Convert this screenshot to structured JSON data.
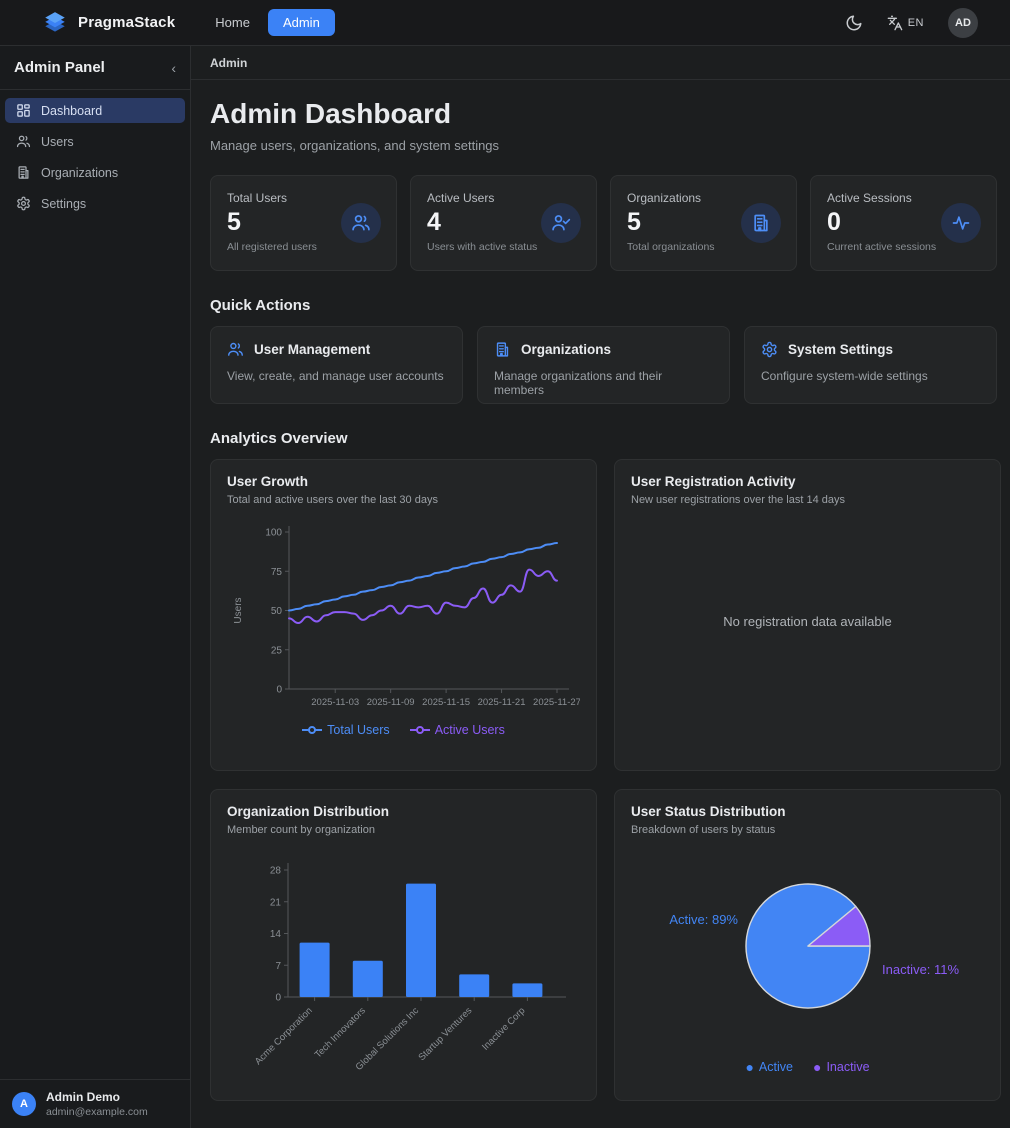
{
  "navbar": {
    "brand": "PragmaStack",
    "links": [
      {
        "label": "Home",
        "active": false
      },
      {
        "label": "Admin",
        "active": true
      }
    ],
    "language": "EN",
    "avatar_initials": "AD"
  },
  "sidebar": {
    "title": "Admin Panel",
    "collapse_icon": "‹",
    "items": [
      {
        "label": "Dashboard",
        "icon": "dashboard-icon",
        "active": true
      },
      {
        "label": "Users",
        "icon": "users-icon",
        "active": false
      },
      {
        "label": "Organizations",
        "icon": "building-icon",
        "active": false
      },
      {
        "label": "Settings",
        "icon": "gear-icon",
        "active": false
      }
    ],
    "user": {
      "name": "Admin Demo",
      "email": "admin@example.com",
      "initial": "A"
    }
  },
  "breadcrumb": "Admin",
  "header": {
    "title": "Admin Dashboard",
    "subtitle": "Manage users, organizations, and system settings"
  },
  "stats": [
    {
      "label": "Total Users",
      "value": "5",
      "description": "All registered users",
      "icon": "users-icon"
    },
    {
      "label": "Active Users",
      "value": "4",
      "description": "Users with active status",
      "icon": "user-check-icon"
    },
    {
      "label": "Organizations",
      "value": "5",
      "description": "Total organizations",
      "icon": "building-icon"
    },
    {
      "label": "Active Sessions",
      "value": "0",
      "description": "Current active sessions",
      "icon": "activity-icon"
    }
  ],
  "quick_actions": {
    "heading": "Quick Actions",
    "items": [
      {
        "title": "User Management",
        "description": "View, create, and manage user accounts",
        "icon": "users-icon"
      },
      {
        "title": "Organizations",
        "description": "Manage organizations and their members",
        "icon": "building-icon"
      },
      {
        "title": "System Settings",
        "description": "Configure system-wide settings",
        "icon": "gear-icon"
      }
    ]
  },
  "analytics_heading": "Analytics Overview",
  "colors": {
    "accent_blue": "#3b82f6",
    "line_blue": "#4d8df6",
    "purple": "#8b5cf6",
    "axis": "#54575a",
    "tick_text": "#8b9095",
    "card_bg": "#232526"
  },
  "chart_data": [
    {
      "type": "line",
      "title": "User Growth",
      "subtitle": "Total and active users over the last 30 days",
      "ylabel": "Users",
      "ylim": [
        0,
        100
      ],
      "yticks": [
        0,
        25,
        50,
        75,
        100
      ],
      "x_tick_indices": [
        5,
        11,
        17,
        23,
        29
      ],
      "x_tick_labels": [
        "2025-11-03",
        "2025-11-09",
        "2025-11-15",
        "2025-11-21",
        "2025-11-27"
      ],
      "legend_position": "bottom",
      "grid": false,
      "series": [
        {
          "name": "Total Users",
          "color": "#4d8df6",
          "values": [
            50,
            51,
            53,
            54,
            56,
            57,
            59,
            60,
            62,
            63,
            65,
            66,
            68,
            69,
            71,
            72,
            74,
            75,
            77,
            78,
            80,
            81,
            83,
            84,
            86,
            87,
            89,
            90,
            92,
            93
          ]
        },
        {
          "name": "Active Users",
          "color": "#8b5cf6",
          "values": [
            45,
            42,
            46,
            43,
            47,
            49,
            49,
            48,
            44,
            47,
            50,
            53,
            48,
            53,
            52,
            53,
            48,
            55,
            53,
            52,
            58,
            64,
            55,
            60,
            66,
            62,
            76,
            72,
            75,
            69
          ]
        }
      ]
    },
    {
      "type": "empty",
      "title": "User Registration Activity",
      "subtitle": "New user registrations over the last 14 days",
      "message": "No registration data available"
    },
    {
      "type": "bar",
      "title": "Organization Distribution",
      "subtitle": "Member count by organization",
      "categories": [
        "Acme Corporation",
        "Tech Innovators",
        "Global Solutions Inc",
        "Startup Ventures",
        "Inactive Corp"
      ],
      "values": [
        12,
        8,
        25,
        5,
        3
      ],
      "ylim": [
        0,
        28
      ],
      "yticks": [
        0,
        7,
        14,
        21,
        28
      ],
      "color": "#3b82f6",
      "grid": false
    },
    {
      "type": "pie",
      "title": "User Status Distribution",
      "subtitle": "Breakdown of users by status",
      "slices": [
        {
          "label": "Active",
          "pct": 89,
          "color": "#4285f4"
        },
        {
          "label": "Inactive",
          "pct": 11,
          "color": "#8b5cf6"
        }
      ],
      "slice_label_texts": [
        "Active: 89%",
        "Inactive: 11%"
      ],
      "legend_position": "bottom"
    }
  ]
}
